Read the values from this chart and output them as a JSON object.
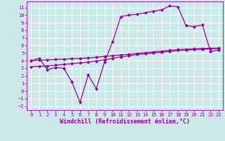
{
  "xlabel": "Windchill (Refroidissement éolien,°C)",
  "bg_color": "#cce8e8",
  "grid_color": "#ffffff",
  "line_color": "#990099",
  "x_ticks": [
    0,
    1,
    2,
    3,
    4,
    5,
    6,
    7,
    8,
    9,
    10,
    11,
    12,
    13,
    14,
    15,
    16,
    17,
    18,
    19,
    20,
    21,
    22,
    23
  ],
  "y_ticks": [
    -2,
    -1,
    0,
    1,
    2,
    3,
    4,
    5,
    6,
    7,
    8,
    9,
    10,
    11
  ],
  "ylim": [
    -2.5,
    11.8
  ],
  "xlim": [
    -0.5,
    23.5
  ],
  "line1_x": [
    0,
    1,
    2,
    3,
    4,
    5,
    6,
    7,
    8,
    9,
    10,
    11,
    12,
    13,
    14,
    15,
    16,
    17,
    18,
    19,
    20,
    21,
    22,
    23
  ],
  "line1_y": [
    4.0,
    4.3,
    2.8,
    3.1,
    3.0,
    1.2,
    -1.5,
    2.1,
    0.3,
    3.8,
    6.5,
    9.8,
    10.0,
    10.1,
    10.3,
    10.5,
    10.7,
    11.2,
    11.1,
    8.6,
    8.5,
    8.7,
    5.2,
    5.4
  ],
  "line2_x": [
    0,
    1,
    2,
    3,
    4,
    5,
    6,
    7,
    8,
    9,
    10,
    11,
    12,
    13,
    14,
    15,
    16,
    17,
    18,
    19,
    20,
    21,
    22,
    23
  ],
  "line2_y": [
    4.0,
    4.05,
    4.1,
    4.15,
    4.2,
    4.25,
    4.3,
    4.35,
    4.45,
    4.55,
    4.65,
    4.75,
    4.85,
    4.95,
    5.05,
    5.15,
    5.25,
    5.35,
    5.45,
    5.5,
    5.55,
    5.6,
    5.62,
    5.65
  ],
  "line3_x": [
    0,
    1,
    2,
    3,
    4,
    5,
    6,
    7,
    8,
    9,
    10,
    11,
    12,
    13,
    14,
    15,
    16,
    17,
    18,
    19,
    20,
    21,
    22,
    23
  ],
  "line3_y": [
    3.2,
    3.25,
    3.3,
    3.4,
    3.5,
    3.6,
    3.7,
    3.8,
    3.95,
    4.1,
    4.3,
    4.5,
    4.65,
    4.8,
    4.9,
    5.0,
    5.1,
    5.2,
    5.35,
    5.4,
    5.45,
    5.5,
    5.55,
    5.6
  ],
  "marker_size": 2.5,
  "line_width": 0.9,
  "tick_fontsize": 5.0,
  "label_fontsize": 6.0
}
